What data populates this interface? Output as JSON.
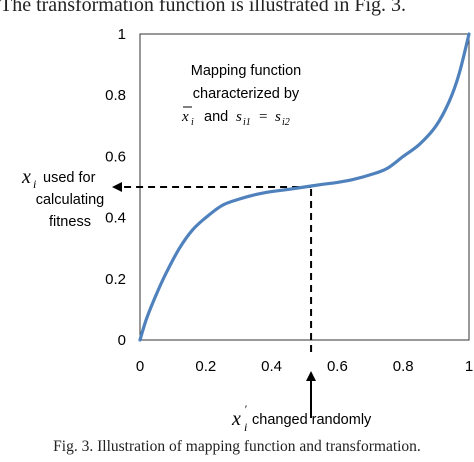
{
  "paper": {
    "body_text": "The transformation function is illustrated in Fig. 3.",
    "caption": "Fig. 3.  Illustration of mapping function and transformation."
  },
  "chart_data": {
    "type": "line",
    "x_ticks": [
      "0",
      "0.2",
      "0.4",
      "0.6",
      "0.8",
      "1"
    ],
    "y_ticks": [
      "0",
      "0.2",
      "0.4",
      "0.6",
      "0.8",
      "1"
    ],
    "xlim": [
      0,
      1
    ],
    "ylim": [
      0,
      1
    ],
    "grid": false,
    "series": [
      {
        "color": "#4f81bd",
        "x": [
          0,
          0.02,
          0.05,
          0.08,
          0.12,
          0.16,
          0.2,
          0.25,
          0.3,
          0.35,
          0.4,
          0.45,
          0.5,
          0.55,
          0.6,
          0.65,
          0.7,
          0.75,
          0.8,
          0.85,
          0.9,
          0.94,
          0.97,
          1.0
        ],
        "y": [
          0,
          0.07,
          0.15,
          0.22,
          0.3,
          0.36,
          0.4,
          0.44,
          0.46,
          0.475,
          0.485,
          0.492,
          0.5,
          0.508,
          0.515,
          0.525,
          0.54,
          0.56,
          0.6,
          0.64,
          0.7,
          0.78,
          0.87,
          1.0
        ]
      }
    ],
    "annotation_box": {
      "line1": "Mapping function",
      "line2": "characterized by",
      "xbar": "x",
      "sub_i": "i",
      "and": "and",
      "s": "s",
      "sub_i1": "i1",
      "eq": "=",
      "sub_i2": "i2"
    },
    "left_label": {
      "x": "x",
      "sub_i": "i",
      "line1": "used for",
      "line2": "calculating",
      "line3": "fitness"
    },
    "bottom_label": {
      "x": "x",
      "sub_i": "i",
      "prime": "'",
      "text": "changed randomly"
    },
    "dashed_guide": {
      "x": 0.52,
      "y": 0.5
    }
  }
}
